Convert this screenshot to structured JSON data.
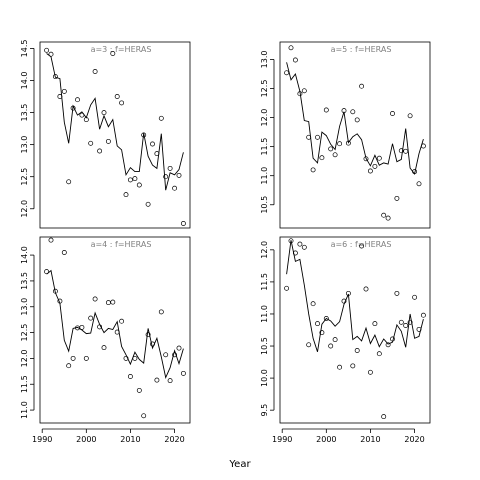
{
  "chart_data": {
    "type": "scatter",
    "xlabel": "Year",
    "panels": [
      {
        "label": "a=3 : f=HERAS",
        "ylim": [
          11.7,
          14.6
        ],
        "yticks": [
          12.0,
          12.5,
          13.0,
          13.5,
          14.0,
          14.5
        ],
        "years": [
          1991,
          1992,
          1993,
          1994,
          1995,
          1996,
          1997,
          1998,
          1999,
          2000,
          2001,
          2002,
          2003,
          2004,
          2005,
          2006,
          2007,
          2008,
          2009,
          2010,
          2011,
          2012,
          2013,
          2014,
          2015,
          2016,
          2017,
          2018,
          2019,
          2020,
          2021,
          2022
        ],
        "observed": [
          14.47,
          14.41,
          14.06,
          13.75,
          13.83,
          12.42,
          13.57,
          13.7,
          13.46,
          13.39,
          13.02,
          14.14,
          12.9,
          13.5,
          13.05,
          14.42,
          13.75,
          13.65,
          12.22,
          12.45,
          12.47,
          12.37,
          13.15,
          12.07,
          13.01,
          12.86,
          13.41,
          12.5,
          12.63,
          12.32,
          12.52,
          11.77
        ],
        "fitted": [
          14.42,
          14.37,
          14.05,
          14.03,
          13.35,
          13.02,
          13.6,
          13.46,
          13.51,
          13.42,
          13.62,
          13.72,
          13.24,
          13.45,
          13.28,
          13.39,
          12.98,
          12.92,
          12.53,
          12.64,
          12.58,
          12.58,
          13.18,
          12.82,
          12.68,
          12.63,
          13.17,
          12.29,
          12.56,
          12.53,
          12.61,
          12.88
        ]
      },
      {
        "label": "a=5 : f=HERAS",
        "ylim": [
          10.1,
          13.3
        ],
        "yticks": [
          10.5,
          11.0,
          11.5,
          12.0,
          12.5,
          13.0
        ],
        "years": [
          1991,
          1992,
          1993,
          1994,
          1995,
          1996,
          1997,
          1998,
          1999,
          2000,
          2001,
          2002,
          2003,
          2004,
          2005,
          2006,
          2007,
          2008,
          2009,
          2010,
          2011,
          2012,
          2013,
          2014,
          2015,
          2016,
          2017,
          2018,
          2019,
          2020,
          2021,
          2022
        ],
        "observed": [
          12.77,
          13.2,
          12.99,
          12.41,
          12.46,
          11.66,
          11.1,
          11.66,
          11.31,
          12.13,
          11.46,
          11.36,
          11.55,
          12.12,
          11.56,
          12.1,
          11.96,
          12.54,
          11.29,
          11.08,
          11.16,
          11.3,
          10.32,
          10.27,
          12.07,
          10.61,
          11.43,
          11.42,
          12.03,
          11.07,
          10.86,
          11.51
        ],
        "fitted": [
          12.95,
          12.65,
          12.75,
          12.45,
          11.95,
          11.93,
          11.3,
          11.22,
          11.75,
          11.69,
          11.54,
          11.45,
          11.85,
          12.1,
          11.57,
          11.67,
          11.72,
          11.62,
          11.3,
          11.17,
          11.35,
          11.18,
          11.22,
          11.2,
          11.55,
          11.24,
          11.28,
          11.81,
          11.13,
          11.03,
          11.38,
          11.63
        ]
      },
      {
        "label": "a=4 : f=HERAS",
        "ylim": [
          10.75,
          14.35
        ],
        "yticks": [
          11.0,
          11.5,
          12.0,
          12.5,
          13.0,
          13.5,
          14.0
        ],
        "years": [
          1991,
          1992,
          1993,
          1994,
          1995,
          1996,
          1997,
          1998,
          1999,
          2000,
          2001,
          2002,
          2003,
          2004,
          2005,
          2006,
          2007,
          2008,
          2009,
          2010,
          2011,
          2012,
          2013,
          2014,
          2015,
          2016,
          2017,
          2018,
          2019,
          2020,
          2021,
          2022
        ],
        "observed": [
          13.68,
          14.29,
          13.3,
          13.11,
          14.05,
          11.86,
          12.0,
          12.59,
          12.6,
          12.0,
          12.78,
          13.15,
          12.61,
          12.21,
          13.08,
          13.09,
          12.51,
          12.72,
          12.0,
          11.65,
          12.0,
          11.38,
          10.89,
          12.46,
          12.28,
          11.58,
          12.9,
          12.07,
          11.57,
          12.07,
          12.2,
          11.71
        ],
        "fitted": [
          13.63,
          13.7,
          13.27,
          13.07,
          12.35,
          12.14,
          12.58,
          12.6,
          12.55,
          12.48,
          12.49,
          12.88,
          12.66,
          12.5,
          12.58,
          12.56,
          12.71,
          12.23,
          12.07,
          11.89,
          12.12,
          11.98,
          11.91,
          12.58,
          12.2,
          12.39,
          12.03,
          11.63,
          11.82,
          12.15,
          11.9,
          12.19
        ]
      },
      {
        "label": "a=6 : f=HERAS",
        "ylim": [
          9.3,
          12.2
        ],
        "yticks": [
          9.5,
          10.0,
          10.5,
          11.0,
          11.5,
          12.0
        ],
        "years": [
          1991,
          1992,
          1993,
          1994,
          1995,
          1996,
          1997,
          1998,
          1999,
          2000,
          2001,
          2002,
          2003,
          2004,
          2005,
          2006,
          2007,
          2008,
          2009,
          2010,
          2011,
          2012,
          2013,
          2014,
          2015,
          2016,
          2017,
          2018,
          2019,
          2020,
          2021,
          2022
        ],
        "observed": [
          11.4,
          12.14,
          11.95,
          12.09,
          12.04,
          10.52,
          11.16,
          10.85,
          10.71,
          10.93,
          10.5,
          10.6,
          10.17,
          11.2,
          11.32,
          10.19,
          10.43,
          12.06,
          11.39,
          10.09,
          10.85,
          10.38,
          9.4,
          10.52,
          10.61,
          11.32,
          10.87,
          10.82,
          10.87,
          11.26,
          10.76,
          10.98
        ],
        "fitted": [
          11.62,
          12.15,
          11.82,
          11.85,
          11.45,
          11.0,
          10.62,
          10.41,
          10.84,
          10.93,
          10.89,
          10.81,
          10.88,
          11.15,
          11.31,
          10.6,
          10.65,
          10.58,
          10.78,
          10.54,
          10.67,
          10.49,
          10.61,
          10.53,
          10.56,
          10.83,
          10.73,
          10.48,
          11.0,
          10.62,
          10.65,
          10.92
        ]
      }
    ],
    "xticks": [
      1990,
      2000,
      2010,
      2020
    ],
    "xlim": [
      1989.5,
      2023.5
    ]
  }
}
